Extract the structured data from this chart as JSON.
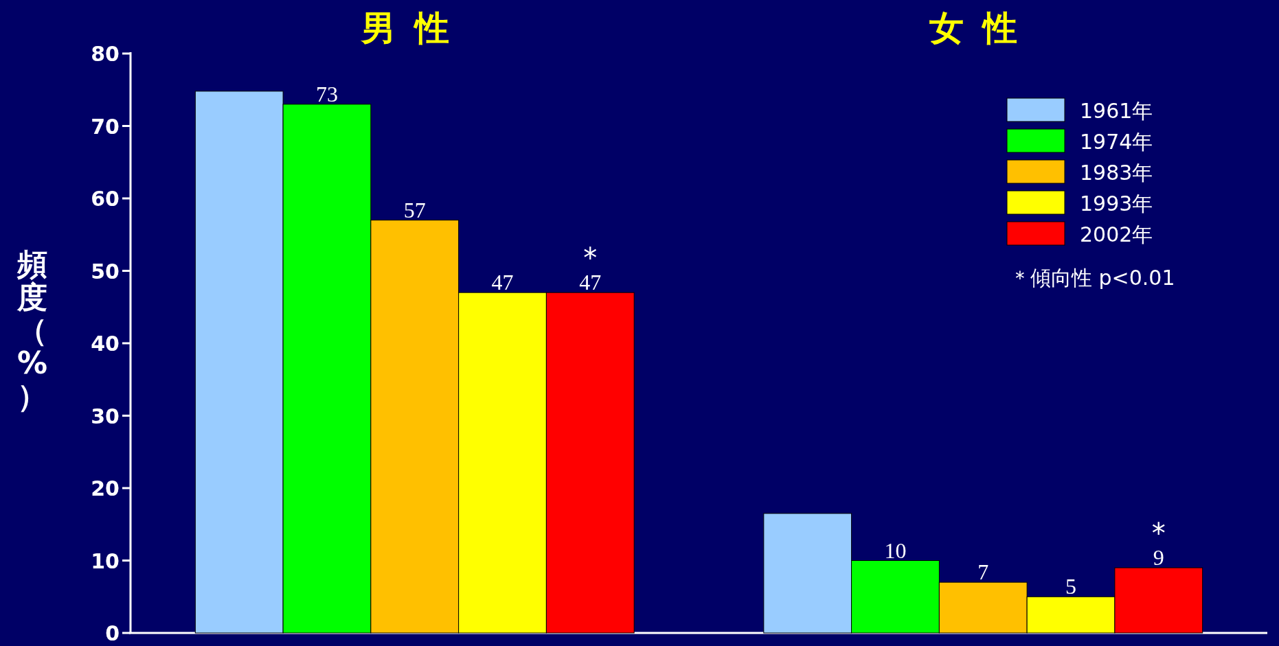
{
  "chart_data": {
    "type": "bar",
    "categories": [
      "男性",
      "女性"
    ],
    "ylabel": "頻度（%）",
    "ylim": [
      0,
      80
    ],
    "yticks": [
      0,
      10,
      20,
      30,
      40,
      50,
      60,
      70,
      80
    ],
    "legend": "top right",
    "grid": false,
    "series": [
      {
        "name": "1961年",
        "color": "#99ccff",
        "values": [
          74.8,
          16.5
        ],
        "value_labels": [
          null,
          null
        ]
      },
      {
        "name": "1974年",
        "color": "#00ff00",
        "values": [
          73,
          10
        ],
        "value_labels": [
          "73",
          "10"
        ]
      },
      {
        "name": "1983年",
        "color": "#ffc000",
        "values": [
          57,
          7
        ],
        "value_labels": [
          "57",
          "7"
        ]
      },
      {
        "name": "1993年",
        "color": "#ffff00",
        "values": [
          47,
          5
        ],
        "value_labels": [
          "47",
          "5"
        ]
      },
      {
        "name": "2002年",
        "color": "#ff0000",
        "values": [
          47,
          9
        ],
        "value_labels": [
          "47",
          "9"
        ]
      }
    ],
    "annotations": [
      "*",
      "*",
      "＊傾向性 p<0.01"
    ]
  }
}
